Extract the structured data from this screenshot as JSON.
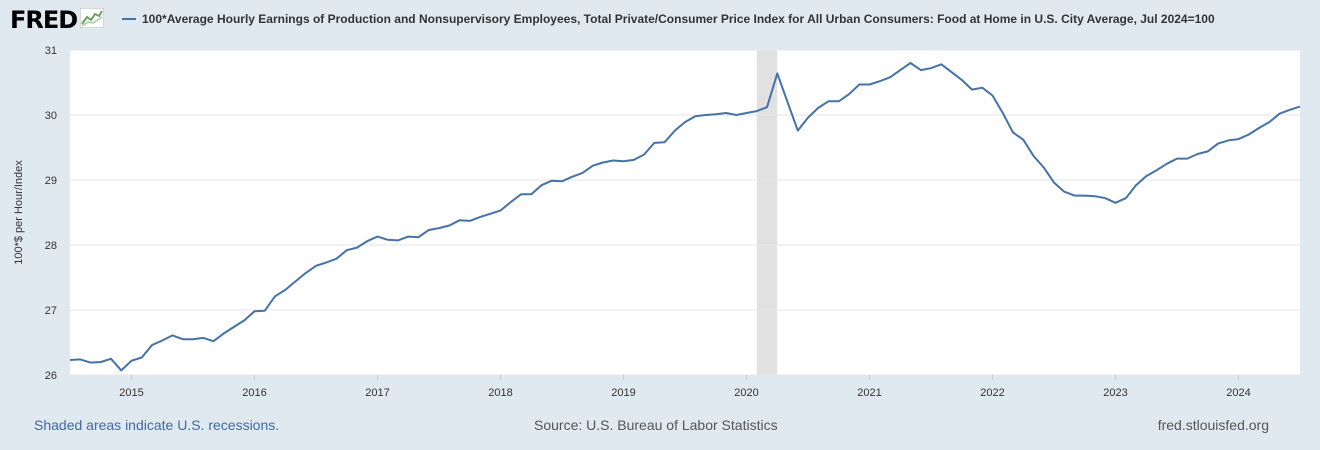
{
  "header": {
    "logo": "FRED",
    "logo_icon": "line-chart-icon"
  },
  "colors": {
    "background": "#e1e9f0",
    "plot_background": "#ffffff",
    "series": "#4572a7",
    "recession_shade": "#e1e1e1",
    "grid": "#e6e6e6"
  },
  "footer": {
    "recession_note": "Shaded areas indicate U.S. recessions.",
    "source": "Source: U.S. Bureau of Labor Statistics",
    "site": "fred.stlouisfed.org"
  },
  "chart_data": {
    "type": "line",
    "title": "",
    "xlabel": "",
    "ylabel": "100*$ per Hour/Index",
    "ylim": [
      26,
      31
    ],
    "xlim": [
      "2014-07",
      "2024-07"
    ],
    "grid": true,
    "legend_position": "top",
    "x_ticks": [
      "2015",
      "2016",
      "2017",
      "2018",
      "2019",
      "2020",
      "2021",
      "2022",
      "2023",
      "2024"
    ],
    "y_ticks": [
      26,
      27,
      28,
      29,
      30,
      31
    ],
    "recessions": [
      {
        "start": "2020-02",
        "end": "2020-04"
      }
    ],
    "series": [
      {
        "name": "100*Average Hourly Earnings of Production and Nonsupervisory Employees, Total Private/Consumer Price Index for All Urban Consumers: Food at Home in U.S. City Average, Jul 2024=100",
        "color": "#4572a7",
        "x": [
          "2014-07",
          "2014-08",
          "2014-09",
          "2014-10",
          "2014-11",
          "2014-12",
          "2015-01",
          "2015-02",
          "2015-03",
          "2015-04",
          "2015-05",
          "2015-06",
          "2015-07",
          "2015-08",
          "2015-09",
          "2015-10",
          "2015-11",
          "2015-12",
          "2016-01",
          "2016-02",
          "2016-03",
          "2016-04",
          "2016-05",
          "2016-06",
          "2016-07",
          "2016-08",
          "2016-09",
          "2016-10",
          "2016-11",
          "2016-12",
          "2017-01",
          "2017-02",
          "2017-03",
          "2017-04",
          "2017-05",
          "2017-06",
          "2017-07",
          "2017-08",
          "2017-09",
          "2017-10",
          "2017-11",
          "2017-12",
          "2018-01",
          "2018-02",
          "2018-03",
          "2018-04",
          "2018-05",
          "2018-06",
          "2018-07",
          "2018-08",
          "2018-09",
          "2018-10",
          "2018-11",
          "2018-12",
          "2019-01",
          "2019-02",
          "2019-03",
          "2019-04",
          "2019-05",
          "2019-06",
          "2019-07",
          "2019-08",
          "2019-09",
          "2019-10",
          "2019-11",
          "2019-12",
          "2020-01",
          "2020-02",
          "2020-03",
          "2020-04",
          "2020-05",
          "2020-06",
          "2020-07",
          "2020-08",
          "2020-09",
          "2020-10",
          "2020-11",
          "2020-12",
          "2021-01",
          "2021-02",
          "2021-03",
          "2021-04",
          "2021-05",
          "2021-06",
          "2021-07",
          "2021-08",
          "2021-09",
          "2021-10",
          "2021-11",
          "2021-12",
          "2022-01",
          "2022-02",
          "2022-03",
          "2022-04",
          "2022-05",
          "2022-06",
          "2022-07",
          "2022-08",
          "2022-09",
          "2022-10",
          "2022-11",
          "2022-12",
          "2023-01",
          "2023-02",
          "2023-03",
          "2023-04",
          "2023-05",
          "2023-06",
          "2023-07",
          "2023-08",
          "2023-09",
          "2023-10",
          "2023-11",
          "2023-12",
          "2024-01",
          "2024-02",
          "2024-03",
          "2024-04",
          "2024-05",
          "2024-06",
          "2024-07"
        ],
        "values": [
          26.23,
          26.24,
          26.19,
          26.2,
          26.25,
          26.07,
          26.22,
          26.27,
          26.46,
          26.53,
          26.61,
          26.55,
          26.55,
          26.57,
          26.52,
          26.64,
          26.74,
          26.84,
          26.98,
          26.99,
          27.21,
          27.31,
          27.44,
          27.57,
          27.68,
          27.73,
          27.79,
          27.92,
          27.96,
          28.06,
          28.13,
          28.08,
          28.07,
          28.13,
          28.12,
          28.23,
          28.26,
          28.3,
          28.38,
          28.37,
          28.43,
          28.48,
          28.53,
          28.66,
          28.78,
          28.78,
          28.92,
          28.99,
          28.98,
          29.05,
          29.11,
          29.22,
          29.27,
          29.3,
          29.29,
          29.31,
          29.39,
          29.57,
          29.58,
          29.76,
          29.89,
          29.98,
          30.0,
          30.01,
          30.03,
          30.0,
          30.03,
          30.06,
          30.12,
          30.64,
          30.2,
          29.76,
          29.96,
          30.11,
          30.21,
          30.21,
          30.32,
          30.47,
          30.47,
          30.52,
          30.58,
          30.69,
          30.8,
          30.69,
          30.72,
          30.78,
          30.66,
          30.54,
          30.39,
          30.42,
          30.3,
          30.03,
          29.73,
          29.62,
          29.37,
          29.19,
          28.96,
          28.82,
          28.76,
          28.76,
          28.75,
          28.72,
          28.65,
          28.72,
          28.92,
          29.06,
          29.15,
          29.25,
          29.33,
          29.33,
          29.4,
          29.44,
          29.56,
          29.61,
          29.63,
          29.7,
          29.8,
          29.89,
          30.02,
          30.08,
          30.13
        ]
      }
    ]
  }
}
